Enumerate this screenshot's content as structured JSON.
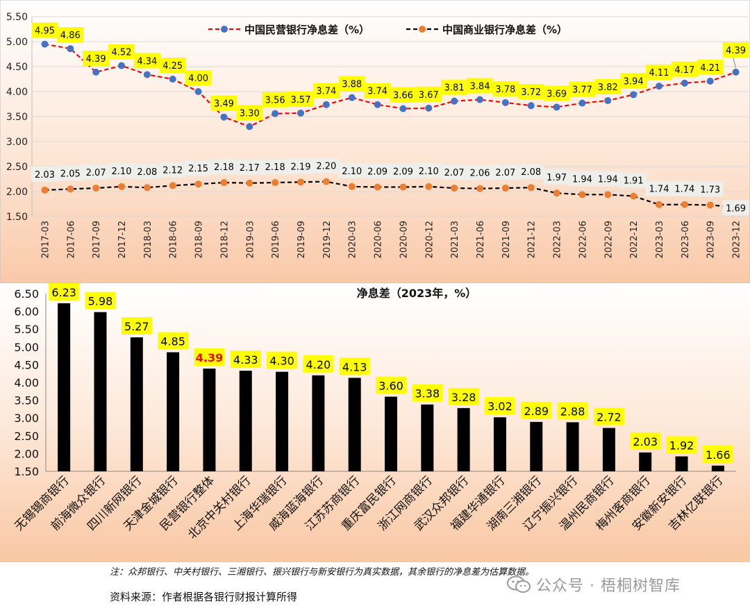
{
  "chart_data": [
    {
      "type": "line",
      "title": "",
      "xlabel": "",
      "ylabel": "",
      "ylim": [
        1.5,
        5.5
      ],
      "yticks": [
        "1.50",
        "2.00",
        "2.50",
        "3.00",
        "3.50",
        "4.00",
        "4.50",
        "5.00",
        "5.50"
      ],
      "legend_position": "top",
      "categories": [
        "2017-03",
        "2017-06",
        "2017-09",
        "2017-12",
        "2018-03",
        "2018-06",
        "2018-09",
        "2018-12",
        "2019-03",
        "2019-06",
        "2019-09",
        "2019-12",
        "2020-03",
        "2020-06",
        "2020-09",
        "2020-12",
        "2021-03",
        "2021-06",
        "2021-09",
        "2021-12",
        "2022-03",
        "2022-06",
        "2022-09",
        "2022-12",
        "2023-03",
        "2023-06",
        "2023-09",
        "2023-12"
      ],
      "series": [
        {
          "name": "中国民营银行净息差（%）",
          "line_color": "#ff0000",
          "marker_color": "#4472c4",
          "values": [
            4.95,
            4.86,
            4.39,
            4.52,
            4.34,
            4.25,
            4.0,
            3.49,
            3.3,
            3.56,
            3.57,
            3.74,
            3.88,
            3.74,
            3.66,
            3.67,
            3.81,
            3.84,
            3.78,
            3.72,
            3.69,
            3.77,
            3.82,
            3.94,
            4.11,
            4.17,
            4.21,
            4.39
          ],
          "labels": [
            "4.95",
            "4.86",
            "4.39",
            "4.52",
            "4.34",
            "4.25",
            "4.00",
            "3.49",
            "3.30",
            "3.56",
            "3.57",
            "3.74",
            "3.88",
            "3.74",
            "3.66",
            "3.67",
            "3.81",
            "3.84",
            "3.78",
            "3.72",
            "3.69",
            "3.77",
            "3.82",
            "3.94",
            "4.11",
            "4.17",
            "4.21",
            "4.39"
          ]
        },
        {
          "name": "中国商业银行净息差（%）",
          "line_color": "#000000",
          "marker_color": "#ed7d31",
          "values": [
            2.03,
            2.05,
            2.07,
            2.1,
            2.08,
            2.12,
            2.15,
            2.18,
            2.17,
            2.18,
            2.19,
            2.2,
            2.1,
            2.09,
            2.09,
            2.1,
            2.07,
            2.06,
            2.07,
            2.08,
            1.97,
            1.94,
            1.94,
            1.91,
            1.74,
            1.74,
            1.73,
            1.69
          ],
          "labels": [
            "2.03",
            "2.05",
            "2.07",
            "2.10",
            "2.08",
            "2.12",
            "2.15",
            "2.18",
            "2.17",
            "2.18",
            "2.19",
            "2.20",
            "2.10",
            "2.09",
            "2.09",
            "2.10",
            "2.07",
            "2.06",
            "2.07",
            "2.08",
            "1.97",
            "1.94",
            "1.94",
            "1.91",
            "1.74",
            "1.74",
            "1.73",
            "1.69"
          ]
        }
      ]
    },
    {
      "type": "bar",
      "title": "净息差（2023年，%）",
      "xlabel": "",
      "ylabel": "",
      "ylim": [
        1.5,
        6.5
      ],
      "yticks": [
        "1.50",
        "2.00",
        "2.50",
        "3.00",
        "3.50",
        "4.00",
        "4.50",
        "5.00",
        "5.50",
        "6.00",
        "6.50"
      ],
      "categories": [
        "无锡锡商银行",
        "前海微众银行",
        "四川新网银行",
        "天津金城银行",
        "民营银行整体",
        "北京中关村银行",
        "上海华瑞银行",
        "威海蓝海银行",
        "江苏苏商银行",
        "重庆富民银行",
        "浙江网商银行",
        "武汉众邦银行",
        "福建华通银行",
        "湖南三湘银行",
        "辽宁振兴银行",
        "温州民商银行",
        "梅州客商银行",
        "安徽新安银行",
        "吉林亿联银行"
      ],
      "values": [
        6.23,
        5.98,
        5.27,
        4.85,
        4.39,
        4.33,
        4.3,
        4.2,
        4.13,
        3.6,
        3.38,
        3.28,
        3.02,
        2.89,
        2.88,
        2.72,
        2.03,
        1.92,
        1.66
      ],
      "labels": [
        "6.23",
        "5.98",
        "5.27",
        "4.85",
        "4.39",
        "4.33",
        "4.30",
        "4.20",
        "4.13",
        "3.60",
        "3.38",
        "3.28",
        "3.02",
        "2.89",
        "2.88",
        "2.72",
        "2.03",
        "1.92",
        "1.66"
      ],
      "highlight_index": 4,
      "highlight_color": "#ff0000",
      "bar_color": "#000000",
      "label_bg": "#ffff00"
    }
  ],
  "footer": {
    "note": "注：众邦银行、中关村银行、三湘银行、振兴银行与新安银行为真实数据，其余银行的净息差为估算数据。",
    "source": "资料来源：作者根据各银行财报计算所得",
    "watermark": "公众号 · 梧桐树智库"
  }
}
